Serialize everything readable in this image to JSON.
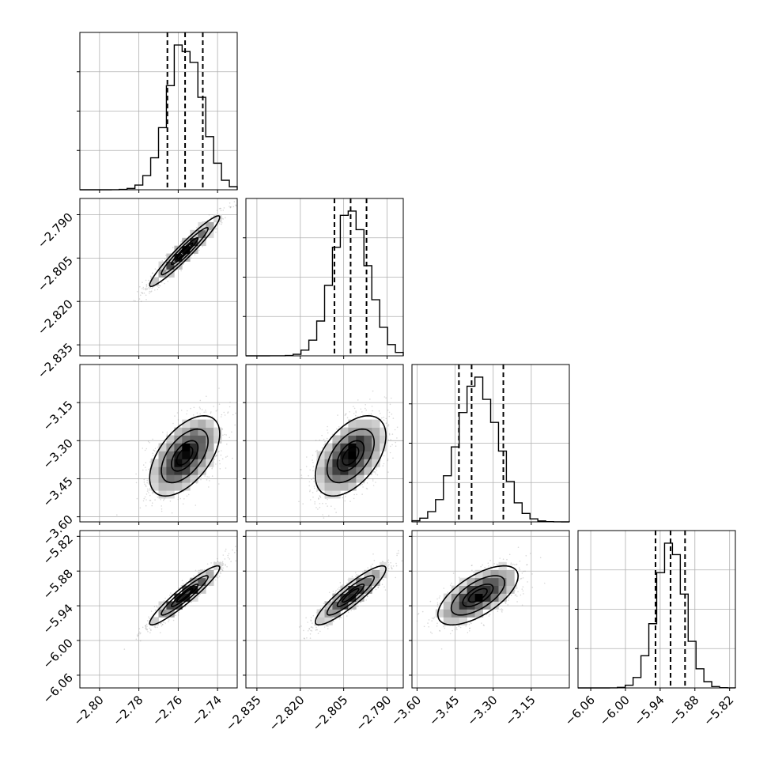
{
  "chart_data": {
    "type": "corner",
    "grid": true,
    "params": [
      {
        "range": [
          -2.81,
          -2.73
        ],
        "ticks": [
          -2.8,
          -2.78,
          -2.76,
          -2.74
        ],
        "tick_labels": [
          "−2.80",
          "−2.78",
          "−2.76",
          "−2.74"
        ],
        "mean": -2.7567,
        "sd": 0.0089,
        "quantiles": [
          -2.7655,
          -2.7565,
          -2.7475
        ]
      },
      {
        "range": [
          -2.8388,
          -2.7844
        ],
        "ticks": [
          -2.835,
          -2.82,
          -2.805,
          -2.79
        ],
        "tick_labels": [
          "−2.835",
          "−2.820",
          "−2.805",
          "−2.790"
        ],
        "mean": -2.8026,
        "sd": 0.0061,
        "quantiles": [
          -2.8082,
          -2.8026,
          -2.7971
        ]
      },
      {
        "range": [
          -3.62,
          -3.0
        ],
        "ticks": [
          -3.6,
          -3.45,
          -3.3,
          -3.15
        ],
        "tick_labels": [
          "−3.60",
          "−3.45",
          "−3.30",
          "−3.15"
        ],
        "mean": -3.36,
        "sd": 0.079,
        "quantiles": [
          -3.435,
          -3.385,
          -3.26
        ]
      },
      {
        "range": [
          -6.082,
          -5.81
        ],
        "ticks": [
          -6.06,
          -6.0,
          -5.94,
          -5.88,
          -5.82
        ],
        "tick_labels": [
          "−6.06",
          "−6.00",
          "−5.94",
          "−5.88",
          "−5.82"
        ],
        "mean": -5.922,
        "sd": 0.0255,
        "quantiles": [
          -5.948,
          -5.922,
          -5.897
        ]
      }
    ],
    "pairs": [
      {
        "row": 1,
        "col": 0,
        "correlation": 0.96
      },
      {
        "row": 2,
        "col": 0,
        "correlation": 0.55
      },
      {
        "row": 2,
        "col": 1,
        "correlation": 0.5
      },
      {
        "row": 3,
        "col": 0,
        "correlation": 0.94
      },
      {
        "row": 3,
        "col": 1,
        "correlation": 0.9
      },
      {
        "row": 3,
        "col": 2,
        "correlation": 0.65
      }
    ]
  }
}
